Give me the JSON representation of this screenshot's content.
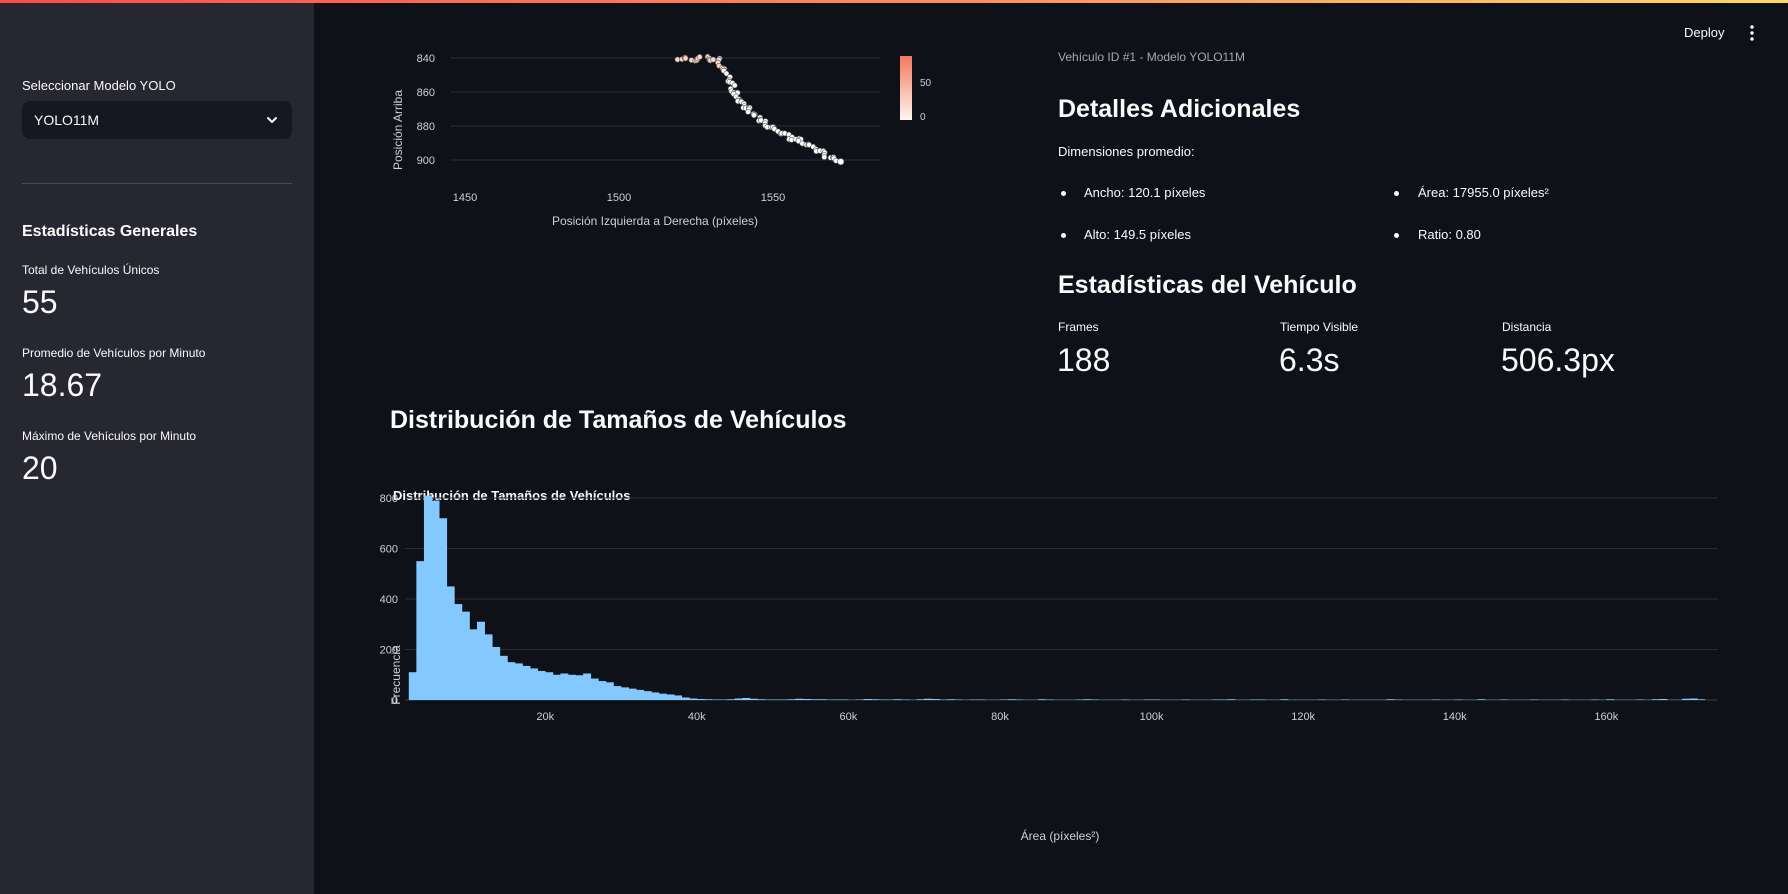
{
  "header": {
    "deploy_label": "Deploy"
  },
  "sidebar": {
    "model_label": "Seleccionar Modelo YOLO",
    "model_value": "YOLO11M",
    "stats_heading": "Estadísticas Generales",
    "metrics": [
      {
        "label": "Total de Vehículos Únicos",
        "value": "55"
      },
      {
        "label": "Promedio de Vehículos por Minuto",
        "value": "18.67"
      },
      {
        "label": "Máximo de Vehículos por Minuto",
        "value": "20"
      }
    ]
  },
  "trajectory_chart": {
    "type": "scatter",
    "ylabel": "Posición Arriba",
    "xlabel": "Posición Izquierda a Derecha (píxeles)",
    "x_ticks": [
      "1450",
      "1500",
      "1550"
    ],
    "y_ticks": [
      "840",
      "860",
      "880",
      "900"
    ],
    "colorbar_ticks": [
      "50",
      "0"
    ]
  },
  "vehicle_panel": {
    "subtitle": "Vehículo ID #1 - Modelo YOLO11M",
    "details_heading": "Detalles Adicionales",
    "dims_label": "Dimensiones promedio:",
    "ancho": "Ancho: 120.1 píxeles",
    "area": "Área: 17955.0 píxeles²",
    "alto": "Alto: 149.5 píxeles",
    "ratio": "Ratio: 0.80",
    "stats_heading": "Estadísticas del Vehículo",
    "metrics": [
      {
        "label": "Frames",
        "value": "188"
      },
      {
        "label": "Tiempo Visible",
        "value": "6.3s"
      },
      {
        "label": "Distancia",
        "value": "506.3px"
      }
    ]
  },
  "distribution_heading": "Distribución de Tamaños de Vehículos",
  "chart_data": [
    {
      "type": "bar",
      "title": "Distribución de Tamaños de Vehículos",
      "xlabel": "Área (píxeles²)",
      "ylabel": "Frecuencia",
      "x_ticks": [
        "20k",
        "40k",
        "60k",
        "80k",
        "100k",
        "120k",
        "140k",
        "160k"
      ],
      "y_ticks": [
        "0",
        "200",
        "400",
        "600",
        "800"
      ],
      "xlim": [
        1500,
        175000
      ],
      "ylim": [
        0,
        820
      ],
      "bin_width": 1000,
      "bin_start": 2000,
      "values": [
        110,
        550,
        810,
        790,
        720,
        450,
        380,
        350,
        280,
        310,
        260,
        210,
        175,
        150,
        145,
        135,
        125,
        115,
        110,
        100,
        105,
        100,
        98,
        105,
        85,
        75,
        70,
        55,
        50,
        45,
        40,
        35,
        30,
        25,
        22,
        18,
        10,
        6,
        4,
        3,
        2,
        2,
        3,
        6,
        8,
        5,
        3,
        2,
        2,
        2,
        3,
        5,
        4,
        3,
        3,
        2,
        2,
        2,
        1,
        2,
        4,
        3,
        2,
        2,
        3,
        2,
        1,
        3,
        5,
        4,
        2,
        3,
        2,
        1,
        2,
        2,
        1,
        1,
        2,
        3,
        2,
        1,
        1,
        3,
        2,
        1,
        1,
        1,
        2,
        3,
        2,
        1,
        1,
        1,
        2,
        1,
        1,
        2,
        2,
        1,
        1,
        1,
        2,
        1,
        1,
        1,
        2,
        2,
        3,
        1,
        1,
        2,
        2,
        1,
        1,
        3,
        1,
        1,
        1,
        1,
        2,
        1,
        1,
        2,
        1,
        1,
        1,
        1,
        1,
        3,
        2,
        1,
        1,
        1,
        1,
        2,
        1,
        1,
        2,
        1,
        1,
        3,
        1,
        1,
        2,
        1,
        1,
        1,
        2,
        1,
        1,
        1,
        2,
        1,
        1,
        1,
        2,
        1,
        3,
        1,
        1,
        1,
        2,
        1,
        3,
        4,
        1,
        1,
        5,
        6,
        3
      ]
    }
  ]
}
